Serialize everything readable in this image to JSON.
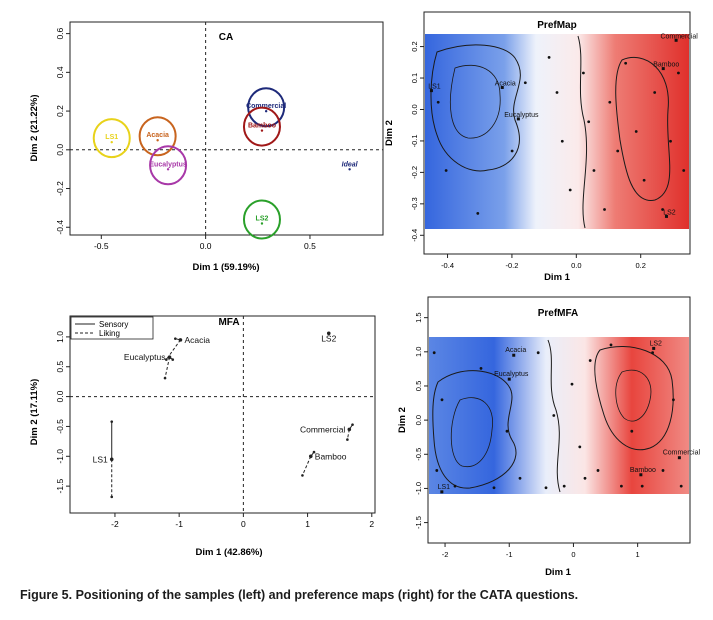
{
  "figure_caption": "Figure 5. Positioning of the samples (left) and preference maps (right) for the CATA questions.",
  "colors": {
    "ls1": "#e8d21a",
    "acacia": "#c8641e",
    "eucalyptus": "#a838a8",
    "commercial": "#1e2a7a",
    "bamboo": "#a01818",
    "ls2": "#2aa02a",
    "ideal": "#1e2a7a",
    "map_high": "#e0302c",
    "map_low": "#2a5ad8"
  },
  "chart_data": [
    {
      "type": "scatter",
      "title": "CA",
      "xlabel": "Dim 1 (59.19%)",
      "ylabel": "Dim 2 (21.22%)",
      "xlim": [
        -0.65,
        0.85
      ],
      "ylim": [
        -0.44,
        0.66
      ],
      "xticks": [
        -0.5,
        0.0,
        0.5
      ],
      "xtick_labels": [
        "-0.5",
        "0.0",
        "0.5"
      ],
      "yticks": [
        -0.4,
        -0.2,
        0.0,
        0.2,
        0.4,
        0.6
      ],
      "ytick_labels": [
        "-0.4",
        "-0.2",
        "0.0",
        "0.2",
        "0.4",
        "0.6"
      ],
      "reference_lines": {
        "x": 0,
        "y": 0,
        "style": "dotted"
      },
      "points": [
        {
          "label": "LS1",
          "x": -0.45,
          "y": 0.06,
          "color_key": "ls1"
        },
        {
          "label": "Acacia",
          "x": -0.23,
          "y": 0.07,
          "color_key": "acacia"
        },
        {
          "label": "Eucalyptus",
          "x": -0.18,
          "y": -0.08,
          "color_key": "eucalyptus"
        },
        {
          "label": "Commercial",
          "x": 0.29,
          "y": 0.22,
          "color_key": "commercial"
        },
        {
          "label": "Bamboo",
          "x": 0.27,
          "y": 0.12,
          "color_key": "bamboo"
        },
        {
          "label": "LS2",
          "x": 0.27,
          "y": -0.36,
          "color_key": "ls2"
        },
        {
          "label": "Ideal",
          "x": 0.69,
          "y": -0.08,
          "color_key": "ideal",
          "no_ellipse": true
        }
      ]
    },
    {
      "type": "heatmap",
      "title": "PrefMap",
      "xlabel": "Dim 1",
      "ylabel": "Dim 2",
      "xlim": [
        -0.47,
        0.35
      ],
      "ylim": [
        -0.38,
        0.24
      ],
      "xticks": [
        -0.4,
        -0.2,
        0.0,
        0.2
      ],
      "xtick_labels": [
        "-0.4",
        "-0.2",
        "0.0",
        "0.2"
      ],
      "yticks": [
        -0.4,
        -0.3,
        -0.2,
        -0.1,
        0.0,
        0.1,
        0.2
      ],
      "ytick_labels": [
        "-0.4",
        "-0.3",
        "-0.2",
        "-0.1",
        "0.0",
        "0.1",
        "0.2"
      ],
      "gradient": "blue (low preference, left) to red (high preference, right)",
      "points": [
        {
          "label": "LS1",
          "x": -0.45,
          "y": 0.06
        },
        {
          "label": "Acacia",
          "x": -0.23,
          "y": 0.07
        },
        {
          "label": "Eucalyptus",
          "x": -0.18,
          "y": -0.03
        },
        {
          "label": "Commercial",
          "x": 0.31,
          "y": 0.22
        },
        {
          "label": "Bamboo",
          "x": 0.27,
          "y": 0.13
        },
        {
          "label": "LS2",
          "x": 0.28,
          "y": -0.34
        }
      ]
    },
    {
      "type": "scatter",
      "title": "MFA",
      "xlabel": "Dim 1 (42.86%)",
      "ylabel": "Dim 2 (17.11%)",
      "xlim": [
        -2.7,
        2.05
      ],
      "ylim": [
        -1.95,
        1.35
      ],
      "xticks": [
        -2,
        -1,
        0,
        1,
        2
      ],
      "xtick_labels": [
        "-2",
        "-1",
        "0",
        "1",
        "2"
      ],
      "yticks": [
        -1.5,
        -1.0,
        -0.5,
        0.0,
        0.5,
        1.0
      ],
      "ytick_labels": [
        "-1.5",
        "-1.0",
        "-0.5",
        "0.0",
        "0.5",
        "1.0"
      ],
      "reference_lines": {
        "x": 0,
        "y": 0,
        "style": "dashed"
      },
      "legend": {
        "position": "top-left",
        "entries": [
          {
            "label": "Sensory",
            "style": "solid"
          },
          {
            "label": "Liking",
            "style": "dashed"
          }
        ]
      },
      "points": [
        {
          "label": "Acacia",
          "x": -0.98,
          "y": 0.95,
          "sensory": [
            -1.06,
            0.97
          ],
          "liking": [
            -1.2,
            0.62
          ]
        },
        {
          "label": "Eucalyptus",
          "x": -1.15,
          "y": 0.66,
          "sensory": [
            -1.1,
            0.62
          ],
          "liking": [
            -1.22,
            0.31
          ]
        },
        {
          "label": "LS2",
          "x": 1.33,
          "y": 1.06,
          "sensory": [
            1.33,
            1.06
          ],
          "liking": [
            1.33,
            1.06
          ]
        },
        {
          "label": "Commercial",
          "x": 1.65,
          "y": -0.55,
          "sensory": [
            1.7,
            -0.47
          ],
          "liking": [
            1.62,
            -0.72
          ]
        },
        {
          "label": "Bamboo",
          "x": 1.05,
          "y": -1.0,
          "sensory": [
            1.1,
            -0.93
          ],
          "liking": [
            0.92,
            -1.32
          ]
        },
        {
          "label": "LS1",
          "x": -2.05,
          "y": -1.05,
          "sensory": [
            -2.05,
            -0.42
          ],
          "liking": [
            -2.05,
            -1.68
          ]
        }
      ]
    },
    {
      "type": "heatmap",
      "title": "PrefMFA",
      "xlabel": "Dim 1",
      "ylabel": "Dim 2",
      "xlim": [
        -2.25,
        1.8
      ],
      "ylim": [
        -1.55,
        1.7
      ],
      "plot_region_y": [
        -1.2,
        1.2
      ],
      "xticks": [
        -2,
        -1,
        0,
        1
      ],
      "xtick_labels": [
        "-2",
        "-1",
        "0",
        "1"
      ],
      "yticks": [
        -1.5,
        -1.0,
        -0.5,
        0.0,
        0.5,
        1.0,
        1.5
      ],
      "ytick_labels": [
        "-1.5",
        "-1.0",
        "-0.5",
        "0.0",
        "0.5",
        "1.0",
        "1.5"
      ],
      "gradient": "blue (low preference, left) to red (high preference, right)",
      "points": [
        {
          "label": "Acacia",
          "x": -0.93,
          "y": 0.95
        },
        {
          "label": "Eucalyptus",
          "x": -1.0,
          "y": 0.6
        },
        {
          "label": "LS2",
          "x": 1.25,
          "y": 1.05
        },
        {
          "label": "Commercial",
          "x": 1.65,
          "y": -0.55
        },
        {
          "label": "Bamboo",
          "x": 1.05,
          "y": -0.8
        },
        {
          "label": "LS1",
          "x": -2.05,
          "y": -1.05
        }
      ]
    }
  ]
}
